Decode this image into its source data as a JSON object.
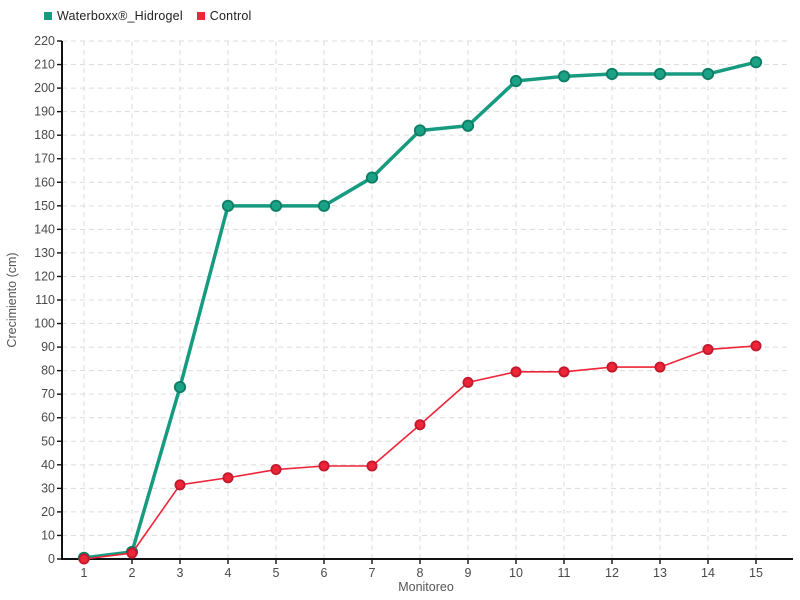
{
  "legend": [
    {
      "label": "Waterboxx®_Hidrogel"
    },
    {
      "label": "Control"
    }
  ],
  "chart_data": {
    "type": "line",
    "title": "",
    "xlabel": "Monitoreo",
    "ylabel": "Crecimiento (cm)",
    "x": [
      1,
      2,
      3,
      4,
      5,
      6,
      7,
      8,
      9,
      10,
      11,
      12,
      13,
      14,
      15
    ],
    "ylim": [
      0,
      220
    ],
    "y_tick_step": 10,
    "grid": true,
    "grid_style": "dashed",
    "legend_position": "top-left",
    "series": [
      {
        "name": "Waterboxx®_Hidrogel",
        "color": "#179b80",
        "marker_fill": "#1aa186",
        "marker_stroke": "#0d7d64",
        "line_width": 3.5,
        "marker_radius": 5.2,
        "values": [
          0.5,
          3,
          73,
          150,
          150,
          150,
          162,
          182,
          184,
          203,
          205,
          206,
          206,
          206,
          211
        ]
      },
      {
        "name": "Control",
        "color": "#ee2438",
        "marker_fill": "#ee2438",
        "marker_stroke": "#c2182c",
        "line_width": 1.6,
        "marker_radius": 4.6,
        "values": [
          0,
          2.5,
          31.5,
          34.5,
          38,
          39.5,
          39.5,
          57,
          75,
          79.5,
          79.5,
          81.5,
          81.5,
          89,
          90.5
        ]
      }
    ],
    "colors": {
      "background": "#ffffff",
      "grid": "#dcdcdc",
      "axis": "#111111",
      "tick_label": "#4a4a4a",
      "axis_title": "#555555",
      "legend_text": "#222222"
    }
  }
}
